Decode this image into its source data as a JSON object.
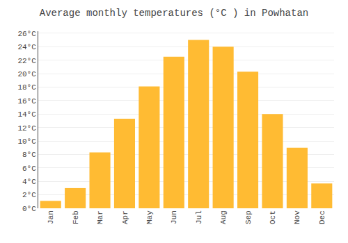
{
  "chart_data": {
    "type": "bar",
    "title": "Average monthly temperatures (°C ) in Powhatan",
    "categories": [
      "Jan",
      "Feb",
      "Mar",
      "Apr",
      "May",
      "Jun",
      "Jul",
      "Aug",
      "Sep",
      "Oct",
      "Nov",
      "Dec"
    ],
    "values": [
      1.1,
      3.0,
      8.3,
      13.3,
      18.1,
      22.5,
      25.0,
      24.0,
      20.3,
      14.0,
      9.0,
      3.7
    ],
    "color": "#FFBB33",
    "ylim": [
      0,
      26.3
    ],
    "yticks": [
      {
        "value": 0,
        "label": "0°C"
      },
      {
        "value": 2,
        "label": "2°C"
      },
      {
        "value": 4,
        "label": "4°C"
      },
      {
        "value": 6,
        "label": "6°C"
      },
      {
        "value": 8,
        "label": "8°C"
      },
      {
        "value": 10,
        "label": "10°C"
      },
      {
        "value": 12,
        "label": "12°C"
      },
      {
        "value": 14,
        "label": "14°C"
      },
      {
        "value": 16,
        "label": "16°C"
      },
      {
        "value": 18,
        "label": "18°C"
      },
      {
        "value": 20,
        "label": "20°C"
      },
      {
        "value": 22,
        "label": "22°C"
      },
      {
        "value": 24,
        "label": "24°C"
      },
      {
        "value": 26,
        "label": "26°C"
      }
    ],
    "grid": true
  }
}
